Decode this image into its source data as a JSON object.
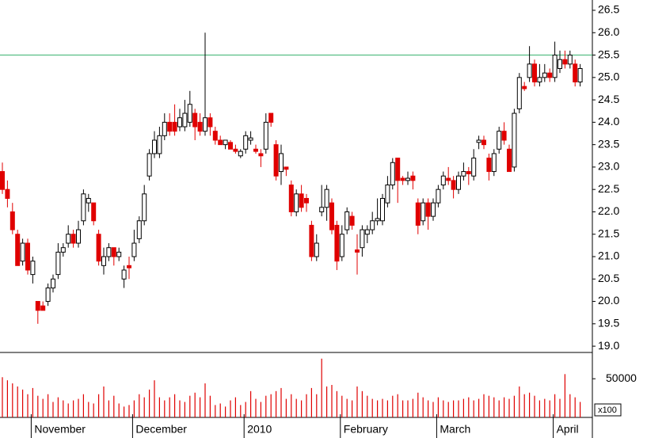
{
  "chart_data": {
    "type": "candlestick",
    "categories": [
      null,
      null,
      null,
      null,
      null,
      null,
      "November",
      null,
      null,
      null,
      null,
      null,
      null,
      null,
      null,
      null,
      null,
      null,
      null,
      null,
      null,
      null,
      null,
      null,
      null,
      null,
      "December",
      null,
      null,
      null,
      null,
      null,
      null,
      null,
      null,
      null,
      null,
      null,
      null,
      null,
      null,
      null,
      null,
      null,
      null,
      null,
      null,
      null,
      "2010",
      null,
      null,
      null,
      null,
      null,
      null,
      null,
      null,
      null,
      null,
      null,
      null,
      null,
      null,
      null,
      null,
      null,
      null,
      "February",
      null,
      null,
      null,
      null,
      null,
      null,
      null,
      null,
      null,
      null,
      null,
      null,
      null,
      null,
      null,
      null,
      null,
      null,
      "March",
      null,
      null,
      null,
      null,
      null,
      null,
      null,
      null,
      null,
      null,
      null,
      null,
      null,
      null,
      null,
      null,
      null,
      null,
      null,
      null,
      null,
      null,
      "April",
      null,
      null,
      null,
      null,
      null
    ],
    "open": [
      22.9,
      22.5,
      22.0,
      21.5,
      20.9,
      21.3,
      20.6,
      20.0,
      19.9,
      20.0,
      20.3,
      20.6,
      21.1,
      21.3,
      21.5,
      21.3,
      21.8,
      22.2,
      22.2,
      21.5,
      20.8,
      21.0,
      21.2,
      21.0,
      20.5,
      20.8,
      21.0,
      21.4,
      21.8,
      22.8,
      23.3,
      23.3,
      23.7,
      24.0,
      24.0,
      23.9,
      23.9,
      24.0,
      24.2,
      24.0,
      23.8,
      24.1,
      23.8,
      23.6,
      23.5,
      23.55,
      23.4,
      23.25,
      23.4,
      23.6,
      23.4,
      23.3,
      23.4,
      24.2,
      23.5,
      22.9,
      23.0,
      22.6,
      22.0,
      22.4,
      22.3,
      21.7,
      21.0,
      22.0,
      22.1,
      22.2,
      21.7,
      21.0,
      21.6,
      21.9,
      21.15,
      21.2,
      21.5,
      21.6,
      21.8,
      21.8,
      22.2,
      22.6,
      23.2,
      22.75,
      22.7,
      22.8,
      22.2,
      21.8,
      22.2,
      21.9,
      22.2,
      22.6,
      22.75,
      22.7,
      22.5,
      22.8,
      22.9,
      22.8,
      23.55,
      23.6,
      23.2,
      22.9,
      23.4,
      23.8,
      23.4,
      23.0,
      24.3,
      24.8,
      25.0,
      25.3,
      24.9,
      25.0,
      25.1,
      25.0,
      25.2,
      25.4,
      25.3,
      25.3,
      24.9
    ],
    "high": [
      23.1,
      22.7,
      22.2,
      21.6,
      21.4,
      21.4,
      21.0,
      20.0,
      20.0,
      20.4,
      20.6,
      21.3,
      21.3,
      21.7,
      21.6,
      21.8,
      22.5,
      22.4,
      22.2,
      21.6,
      21.2,
      21.3,
      21.2,
      21.2,
      20.8,
      21.0,
      21.6,
      21.9,
      22.6,
      23.4,
      23.8,
      23.9,
      24.2,
      24.2,
      24.4,
      24.3,
      24.5,
      24.7,
      24.3,
      24.2,
      26.0,
      24.2,
      23.9,
      23.7,
      23.6,
      23.6,
      23.5,
      23.4,
      23.8,
      23.8,
      23.5,
      23.4,
      24.2,
      24.2,
      23.6,
      23.5,
      23.0,
      22.7,
      22.5,
      22.6,
      22.4,
      21.8,
      21.5,
      22.6,
      22.6,
      22.3,
      21.8,
      21.7,
      22.1,
      22.0,
      21.5,
      21.7,
      21.7,
      22.0,
      22.3,
      22.4,
      22.8,
      23.2,
      23.2,
      22.8,
      22.9,
      22.9,
      22.3,
      22.3,
      22.3,
      22.3,
      22.6,
      22.9,
      23.0,
      22.8,
      22.9,
      23.1,
      23.0,
      23.4,
      23.7,
      23.7,
      23.3,
      23.4,
      23.9,
      24.0,
      23.5,
      24.3,
      25.1,
      24.9,
      25.7,
      25.4,
      25.3,
      25.3,
      25.2,
      25.8,
      25.6,
      25.6,
      25.6,
      25.4,
      25.3
    ],
    "low": [
      22.4,
      22.1,
      21.5,
      20.8,
      20.8,
      20.6,
      20.4,
      19.5,
      19.8,
      19.9,
      20.2,
      20.5,
      21.0,
      21.2,
      21.2,
      21.2,
      21.7,
      22.0,
      21.7,
      20.8,
      20.6,
      20.9,
      20.8,
      20.9,
      20.3,
      20.5,
      20.9,
      21.3,
      21.7,
      22.7,
      23.2,
      23.2,
      23.6,
      23.7,
      23.7,
      23.8,
      23.8,
      23.9,
      23.6,
      23.7,
      23.7,
      23.7,
      23.5,
      23.5,
      23.4,
      23.4,
      23.3,
      23.2,
      23.3,
      23.5,
      23.3,
      23.0,
      23.3,
      23.9,
      22.7,
      22.6,
      22.8,
      21.9,
      21.9,
      22.0,
      22.0,
      20.9,
      20.9,
      21.9,
      21.8,
      21.5,
      20.7,
      20.9,
      21.5,
      21.6,
      20.6,
      21.0,
      21.3,
      21.5,
      21.7,
      21.7,
      22.1,
      22.5,
      22.2,
      22.6,
      22.6,
      22.5,
      21.5,
      21.7,
      21.6,
      21.8,
      22.1,
      22.5,
      22.6,
      22.3,
      22.4,
      22.7,
      22.6,
      22.7,
      23.4,
      23.4,
      22.7,
      22.8,
      23.3,
      23.5,
      22.9,
      22.9,
      24.2,
      24.7,
      24.9,
      24.8,
      24.8,
      24.9,
      24.9,
      24.9,
      25.1,
      25.2,
      25.2,
      24.8,
      24.8
    ],
    "close": [
      22.5,
      22.3,
      21.6,
      20.8,
      21.3,
      20.7,
      20.9,
      19.8,
      19.8,
      20.3,
      20.5,
      21.1,
      21.2,
      21.5,
      21.3,
      21.6,
      22.4,
      22.3,
      21.8,
      20.9,
      21.0,
      21.2,
      21.0,
      21.1,
      20.7,
      20.75,
      21.3,
      21.8,
      22.4,
      23.3,
      23.6,
      23.7,
      24.0,
      23.8,
      23.8,
      24.1,
      24.2,
      24.4,
      23.9,
      23.8,
      24.1,
      23.9,
      23.6,
      23.5,
      23.6,
      23.4,
      23.35,
      23.35,
      23.7,
      23.65,
      23.35,
      23.25,
      24.0,
      24.0,
      22.8,
      23.3,
      22.95,
      22.0,
      22.4,
      22.1,
      22.2,
      21.0,
      21.3,
      22.1,
      22.5,
      21.6,
      20.9,
      21.5,
      22.0,
      21.7,
      21.1,
      21.6,
      21.6,
      21.8,
      21.85,
      22.3,
      22.6,
      23.1,
      22.7,
      22.7,
      22.75,
      22.7,
      21.7,
      22.2,
      21.9,
      22.2,
      22.5,
      22.8,
      22.7,
      22.5,
      22.8,
      22.9,
      22.85,
      23.2,
      23.6,
      23.5,
      22.9,
      23.3,
      23.8,
      23.6,
      22.9,
      24.2,
      25.0,
      24.75,
      25.3,
      24.9,
      25.0,
      25.1,
      25.0,
      25.5,
      25.4,
      25.3,
      25.5,
      24.9,
      25.2
    ],
    "volume": [
      52000,
      48000,
      44000,
      40000,
      36000,
      30000,
      38000,
      28000,
      24000,
      30000,
      20000,
      26000,
      22000,
      18000,
      22000,
      24000,
      30000,
      20000,
      18000,
      30000,
      40000,
      22000,
      28000,
      18000,
      14000,
      16000,
      22000,
      30000,
      26000,
      36000,
      48000,
      26000,
      22000,
      26000,
      30000,
      22000,
      20000,
      28000,
      32000,
      26000,
      44000,
      28000,
      16000,
      18000,
      14000,
      22000,
      26000,
      16000,
      20000,
      34000,
      24000,
      20000,
      28000,
      30000,
      34000,
      38000,
      24000,
      30000,
      24000,
      22000,
      30000,
      38000,
      30000,
      76000,
      40000,
      42000,
      34000,
      28000,
      24000,
      22000,
      40000,
      34000,
      28000,
      24000,
      22000,
      24000,
      22000,
      28000,
      30000,
      22000,
      22000,
      24000,
      32000,
      26000,
      22000,
      20000,
      26000,
      22000,
      20000,
      22000,
      22000,
      24000,
      26000,
      22000,
      24000,
      30000,
      28000,
      26000,
      22000,
      26000,
      24000,
      28000,
      40000,
      30000,
      32000,
      28000,
      22000,
      24000,
      22000,
      30000,
      24000,
      56000,
      30000,
      26000,
      20000
    ],
    "up_color": "#ffffff",
    "down_color": "#e00000",
    "volume_color": "#e00000",
    "ylim": [
      18.86,
      26.73
    ],
    "yticks": [
      26.5,
      {
        "value": 26,
        "label": "26.0"
      },
      25.5,
      {
        "value": 25,
        "label": "25.0"
      },
      24.5,
      {
        "value": 24,
        "label": "24.0"
      },
      23.5,
      {
        "value": 23,
        "label": "23.0"
      },
      22.5,
      {
        "value": 22,
        "label": "22.0"
      },
      21.5,
      {
        "value": 21,
        "label": "21.0"
      },
      20.5,
      {
        "value": 20,
        "label": "20.0"
      },
      19.5,
      {
        "value": 19,
        "label": "19.0"
      }
    ],
    "hline": {
      "value": 25.5,
      "color": "#3cb371"
    },
    "volume_ylim": [
      0,
      84000
    ],
    "volume_yticks": [
      50000
    ],
    "volume_unit": "x100"
  }
}
